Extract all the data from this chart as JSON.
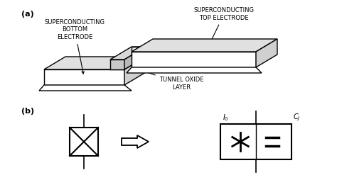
{
  "bg_color": "#ffffff",
  "line_color": "#000000",
  "label_a": "(a)",
  "label_b": "(b)",
  "text_bottom_electrode": "SUPERCONDUCTING\nBOTTOM\nELECTRODE",
  "text_top_electrode": "SUPERCONDUCTING\nTOP ELECTRODE",
  "text_tunnel": "TUNNEL OXIDE\nLAYER",
  "text_I0": "$I_0$",
  "text_CJ": "$C_J$",
  "figsize": [
    4.74,
    2.47
  ],
  "dpi": 100
}
